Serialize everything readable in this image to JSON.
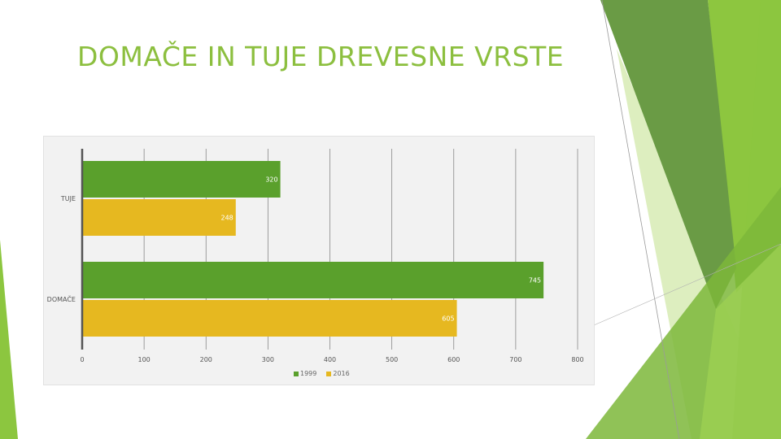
{
  "slide": {
    "title": "DOMAČE IN TUJE DREVESNE VRSTE",
    "accent_color": "#8cbf3f"
  },
  "chart_data": {
    "type": "bar",
    "orientation": "horizontal",
    "categories": [
      "TUJE",
      "DOMAČE"
    ],
    "series": [
      {
        "name": "1999",
        "values": [
          320,
          745
        ],
        "color": "#5aa02c"
      },
      {
        "name": "2016",
        "values": [
          248,
          605
        ],
        "color": "#e6b820"
      }
    ],
    "xlim": [
      0,
      800
    ],
    "xticks": [
      0,
      100,
      200,
      300,
      400,
      500,
      600,
      700,
      800
    ],
    "grid": "vertical",
    "legend_position": "bottom",
    "data_labels": true
  }
}
